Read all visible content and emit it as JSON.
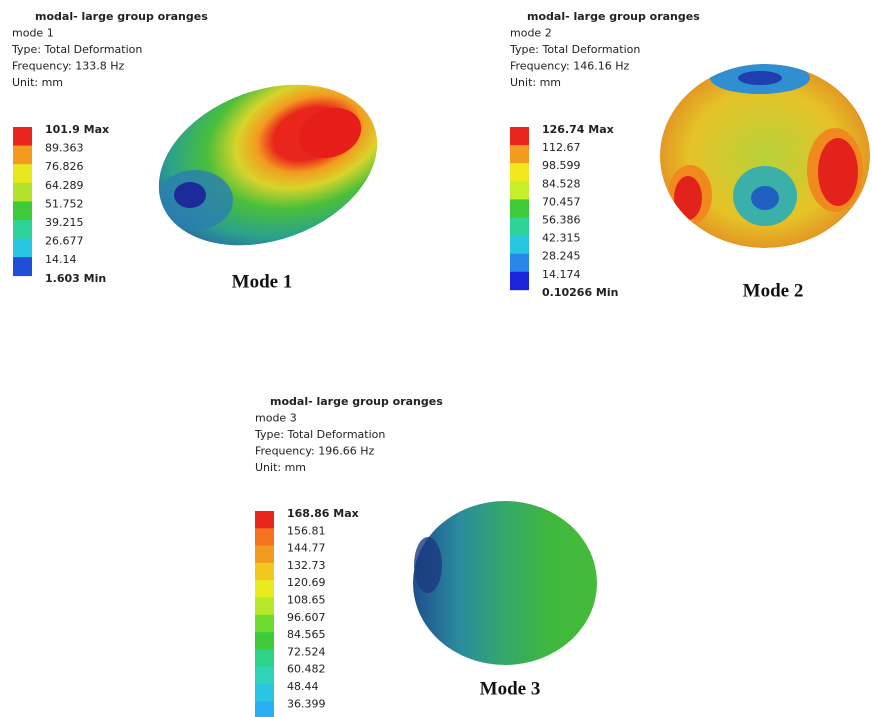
{
  "panels": [
    {
      "title": "modal- large group oranges",
      "mode": "mode 1",
      "type": "Type: Total Deformation",
      "frequency": "Frequency: 133.8 Hz",
      "unit": "Unit: mm",
      "legend": [
        "101.9 Max",
        "89.363",
        "76.826",
        "64.289",
        "51.752",
        "39.215",
        "26.677",
        "14.14",
        "1.603 Min"
      ],
      "caption": "Mode 1"
    },
    {
      "title": "modal- large group oranges",
      "mode": "mode 2",
      "type": "Type: Total Deformation",
      "frequency": "Frequency: 146.16 Hz",
      "unit": "Unit: mm",
      "legend": [
        "126.74 Max",
        "112.67",
        "98.599",
        "84.528",
        "70.457",
        "56.386",
        "42.315",
        "28.245",
        "14.174",
        "0.10266 Min"
      ],
      "caption": "Mode 2"
    },
    {
      "title": "modal- large group oranges",
      "mode": "mode 3",
      "type": "Type: Total Deformation",
      "frequency": "Frequency: 196.66 Hz",
      "unit": "Unit: mm",
      "legend": [
        "168.86 Max",
        "156.81",
        "144.77",
        "132.73",
        "120.69",
        "108.65",
        "96.607",
        "84.565",
        "72.524",
        "60.482",
        "48.44",
        "36.399"
      ],
      "caption": "Mode 3"
    }
  ]
}
